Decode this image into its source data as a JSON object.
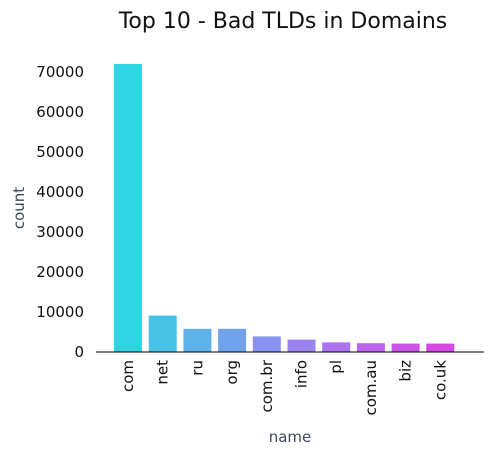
{
  "chart_data": {
    "type": "bar",
    "title": "Top 10 - Bad TLDs in Domains",
    "xlabel": "name",
    "ylabel": "count",
    "categories": [
      "com",
      "net",
      "ru",
      "org",
      "com.br",
      "info",
      "pl",
      "com.au",
      "biz",
      "co.uk"
    ],
    "values": [
      72000,
      9100,
      5800,
      5800,
      3900,
      3100,
      2400,
      2200,
      2100,
      2100
    ],
    "colors": [
      "#2fd5e3",
      "#48c3e6",
      "#5db2ea",
      "#71a3ed",
      "#8893ef",
      "#9b84ee",
      "#ad73ee",
      "#bd63ed",
      "#c954e6",
      "#d548e3"
    ],
    "ylim": [
      0,
      72000
    ],
    "yticks": [
      0,
      10000,
      20000,
      30000,
      40000,
      50000,
      60000,
      70000
    ],
    "grid": false,
    "legend": "none"
  }
}
